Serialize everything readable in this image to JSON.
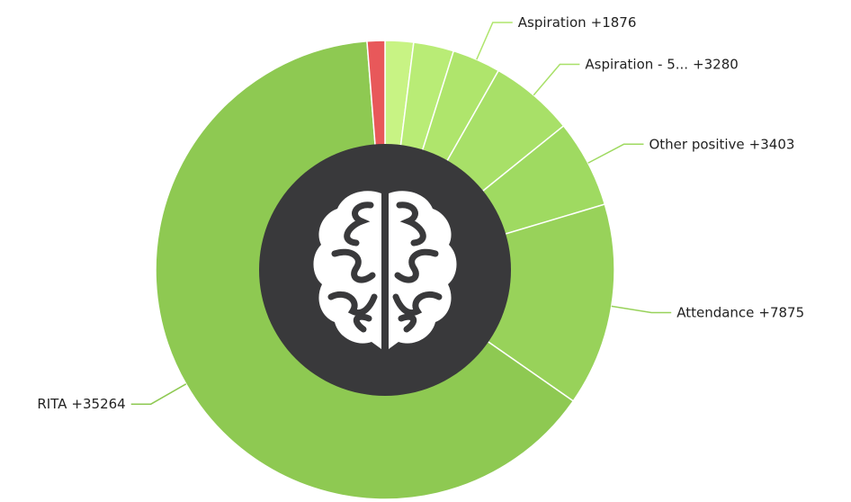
{
  "chart_data": {
    "type": "donut",
    "categories": [
      null,
      null,
      "Aspiration",
      "Aspiration - 5...",
      "Other positive",
      "Attendance",
      "RITA",
      null
    ],
    "values": [
      1100,
      1560,
      1876,
      3280,
      3403,
      7875,
      35264,
      690
    ],
    "value_labels": [
      null,
      null,
      "+1876",
      "+3280",
      "+3403",
      "+7875",
      "+35264",
      null
    ],
    "colors": [
      "#c8f384",
      "#b9ec76",
      "#afe56c",
      "#a8e068",
      "#9fda61",
      "#98d25a",
      "#8ec952",
      "#e8585a"
    ]
  }
}
